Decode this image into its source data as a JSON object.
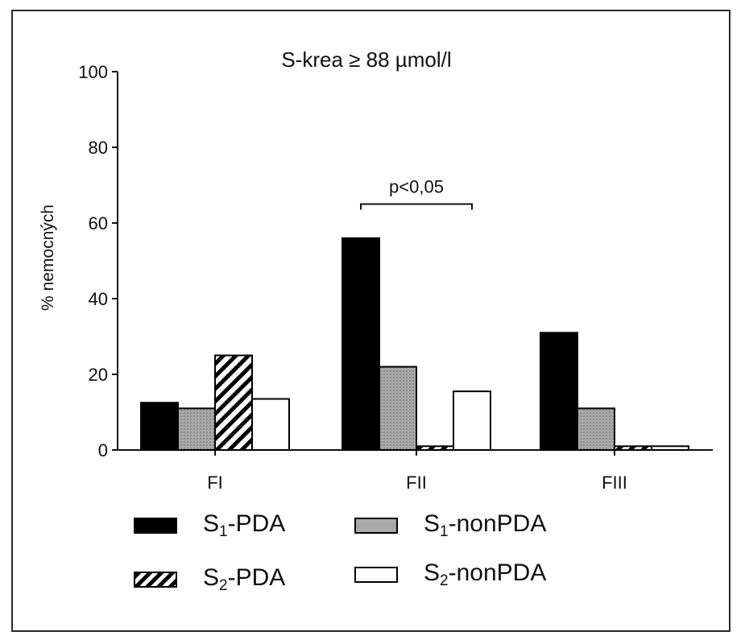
{
  "chart_data": {
    "type": "bar",
    "title": "S-krea ≥ 88 µmol/l",
    "ylabel": "% nemocných",
    "xlabel": "",
    "ylim": [
      0,
      100
    ],
    "yticks": [
      0,
      20,
      40,
      60,
      80,
      100
    ],
    "categories": [
      "FI",
      "FII",
      "FIII"
    ],
    "series": [
      {
        "name": "S1-PDA",
        "prefix": "S",
        "sub": "1",
        "suffix": "-PDA",
        "values": [
          12.5,
          56,
          31
        ],
        "fill": "#000000",
        "pattern": "solid"
      },
      {
        "name": "S1-nonPDA",
        "prefix": "S",
        "sub": "1",
        "suffix": "-nonPDA",
        "values": [
          11,
          22,
          11
        ],
        "fill": "#a8a8a8",
        "pattern": "dotted-gray"
      },
      {
        "name": "S2-PDA",
        "prefix": "S",
        "sub": "2",
        "suffix": "-PDA",
        "values": [
          25,
          1,
          1
        ],
        "fill": "#000000",
        "pattern": "hatch"
      },
      {
        "name": "S2-nonPDA",
        "prefix": "S",
        "sub": "2",
        "suffix": "-nonPDA",
        "values": [
          13.5,
          15.5,
          1
        ],
        "fill": "#ffffff",
        "pattern": "solid"
      }
    ],
    "annotations": [
      {
        "text": "p<0,05",
        "category": "FII",
        "from_series": 0,
        "to_series": 3,
        "y": 65
      }
    ],
    "legend_position": "bottom",
    "grid": false
  }
}
